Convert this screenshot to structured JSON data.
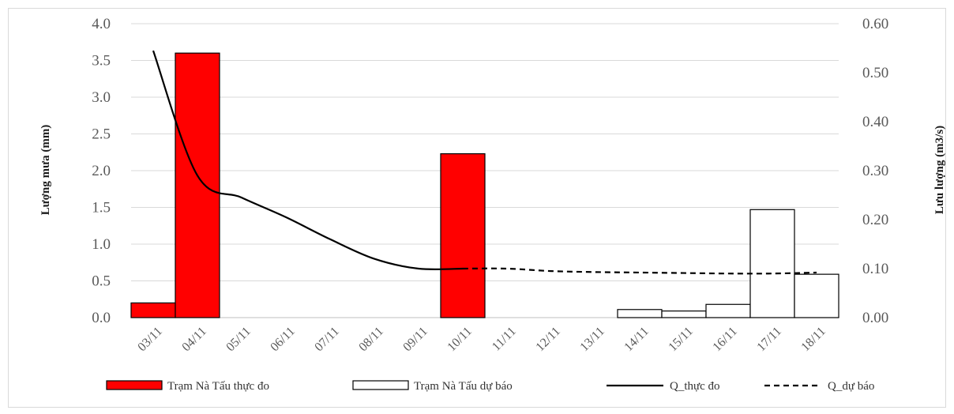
{
  "chart_data": {
    "type": "bar",
    "categories": [
      "03/11",
      "04/11",
      "05/11",
      "06/11",
      "07/11",
      "08/11",
      "09/11",
      "10/11",
      "11/11",
      "12/11",
      "13/11",
      "14/11",
      "15/11",
      "16/11",
      "17/11",
      "18/11"
    ],
    "series": [
      {
        "name": "Trạm Nà Tấu thực đo",
        "kind": "bar",
        "axis": "left",
        "color": "#ff0000",
        "values": [
          0.2,
          3.6,
          0,
          0,
          0,
          0,
          0,
          2.23,
          0,
          0,
          0,
          0,
          0,
          0,
          0,
          0
        ]
      },
      {
        "name": "Trạm Nà Tấu dự báo",
        "kind": "bar",
        "axis": "left",
        "color": "#ffffff",
        "values": [
          0,
          0,
          0,
          0,
          0,
          0,
          0,
          0,
          0,
          0,
          0,
          0.11,
          0.09,
          0.18,
          1.47,
          0.59
        ]
      },
      {
        "name": "Q_thực đo",
        "kind": "line",
        "axis": "right",
        "style": "solid",
        "x": [
          "03/11",
          "04/11",
          "05/11",
          "06/11",
          "07/11",
          "08/11",
          "09/11",
          "10/11"
        ],
        "values": [
          0.545,
          0.29,
          0.245,
          0.205,
          0.16,
          0.12,
          0.1,
          0.1
        ]
      },
      {
        "name": "Q_dự báo",
        "kind": "line",
        "axis": "right",
        "style": "dashed",
        "x": [
          "10/11",
          "11/11",
          "12/11",
          "13/11",
          "14/11",
          "15/11",
          "16/11",
          "17/11",
          "18/11"
        ],
        "values": [
          0.1,
          0.1,
          0.095,
          0.093,
          0.092,
          0.091,
          0.09,
          0.09,
          0.092
        ]
      }
    ],
    "ylabel": "Lượng mưa (mm)",
    "y2label": "Lưu lượng (m3/s)",
    "ylim": [
      0,
      4.0
    ],
    "y2lim": [
      0,
      0.6
    ],
    "yticks": [
      "0.0",
      "0.5",
      "1.0",
      "1.5",
      "2.0",
      "2.5",
      "3.0",
      "3.5",
      "4.0"
    ],
    "y2ticks": [
      "0.00",
      "0.10",
      "0.20",
      "0.30",
      "0.40",
      "0.50",
      "0.60"
    ],
    "grid": true,
    "legend_position": "bottom"
  }
}
